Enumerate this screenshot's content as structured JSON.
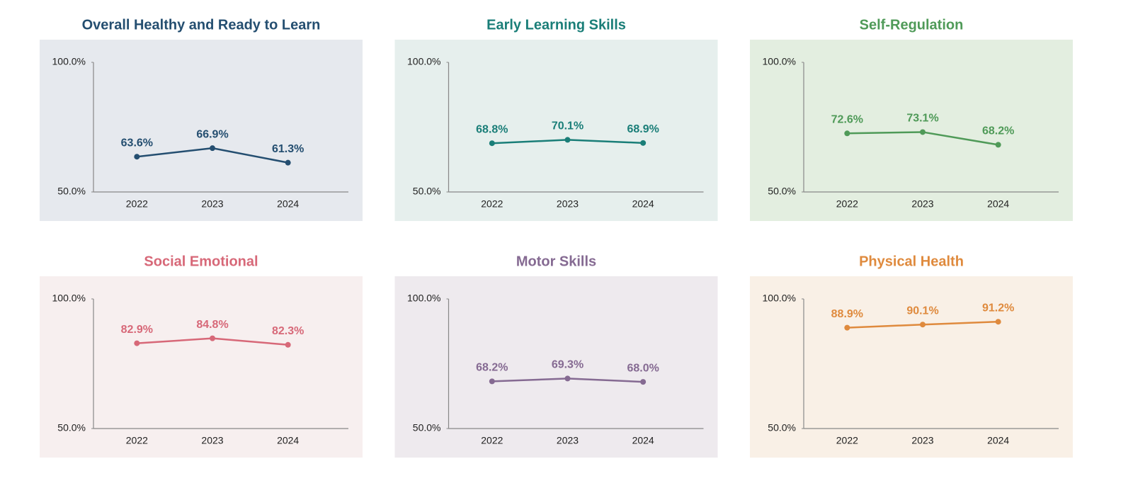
{
  "chart_data": [
    {
      "type": "line",
      "title": "Overall Healthy and Ready to Learn",
      "color": "#244e70",
      "background": "#e6e9ee",
      "categories": [
        "2022",
        "2023",
        "2024"
      ],
      "values": [
        63.6,
        66.9,
        61.3
      ],
      "value_labels": [
        "63.6%",
        "66.9%",
        "61.3%"
      ],
      "ylim": [
        50,
        100
      ],
      "yticks": [
        {
          "value": 50,
          "label": "50.0%"
        },
        {
          "value": 100,
          "label": "100.0%"
        }
      ],
      "grid": false
    },
    {
      "type": "line",
      "title": "Early Learning Skills",
      "color": "#1a7e78",
      "background": "#e6efed",
      "categories": [
        "2022",
        "2023",
        "2024"
      ],
      "values": [
        68.8,
        70.1,
        68.9
      ],
      "value_labels": [
        "68.8%",
        "70.1%",
        "68.9%"
      ],
      "ylim": [
        50,
        100
      ],
      "yticks": [
        {
          "value": 50,
          "label": "50.0%"
        },
        {
          "value": 100,
          "label": "100.0%"
        }
      ],
      "grid": false
    },
    {
      "type": "line",
      "title": "Self-Regulation",
      "color": "#4f9a58",
      "background": "#e3eee0",
      "categories": [
        "2022",
        "2023",
        "2024"
      ],
      "values": [
        72.6,
        73.1,
        68.2
      ],
      "value_labels": [
        "72.6%",
        "73.1%",
        "68.2%"
      ],
      "ylim": [
        50,
        100
      ],
      "yticks": [
        {
          "value": 50,
          "label": "50.0%"
        },
        {
          "value": 100,
          "label": "100.0%"
        }
      ],
      "grid": false
    },
    {
      "type": "line",
      "title": "Social Emotional",
      "color": "#d76878",
      "background": "#f7efef",
      "categories": [
        "2022",
        "2023",
        "2024"
      ],
      "values": [
        82.9,
        84.8,
        82.3
      ],
      "value_labels": [
        "82.9%",
        "84.8%",
        "82.3%"
      ],
      "ylim": [
        50,
        100
      ],
      "yticks": [
        {
          "value": 50,
          "label": "50.0%"
        },
        {
          "value": 100,
          "label": "100.0%"
        }
      ],
      "grid": false
    },
    {
      "type": "line",
      "title": "Motor Skills",
      "color": "#856a92",
      "background": "#eeeaee",
      "categories": [
        "2022",
        "2023",
        "2024"
      ],
      "values": [
        68.2,
        69.3,
        68.0
      ],
      "value_labels": [
        "68.2%",
        "69.3%",
        "68.0%"
      ],
      "ylim": [
        50,
        100
      ],
      "yticks": [
        {
          "value": 50,
          "label": "50.0%"
        },
        {
          "value": 100,
          "label": "100.0%"
        }
      ],
      "grid": false
    },
    {
      "type": "line",
      "title": "Physical Health",
      "color": "#df8a3d",
      "background": "#f9f0e6",
      "categories": [
        "2022",
        "2023",
        "2024"
      ],
      "values": [
        88.9,
        90.1,
        91.2
      ],
      "value_labels": [
        "88.9%",
        "90.1%",
        "91.2%"
      ],
      "ylim": [
        50,
        100
      ],
      "yticks": [
        {
          "value": 50,
          "label": "50.0%"
        },
        {
          "value": 100,
          "label": "100.0%"
        }
      ],
      "grid": false
    }
  ]
}
